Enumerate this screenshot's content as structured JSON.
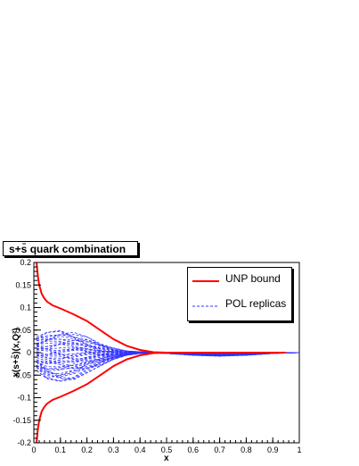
{
  "chart_data": {
    "type": "line",
    "title": "s+s̄ quark combination",
    "xlabel": "x",
    "ylabel": "x(s+s̄)(x,Q²)",
    "xlim": [
      0,
      1
    ],
    "ylim": [
      -0.2,
      0.2
    ],
    "x_ticks": [
      "0",
      "0.1",
      "0.2",
      "0.3",
      "0.4",
      "0.5",
      "0.6",
      "0.7",
      "0.8",
      "0.9",
      "1"
    ],
    "y_ticks": [
      "0.2",
      "0.15",
      "0.1",
      "0.05",
      "0",
      "-0.05",
      "-0.1",
      "-0.15",
      "-0.2"
    ],
    "legend_position": "top-right",
    "series": [
      {
        "name": "UNP bound",
        "color": "#ff0000",
        "style": "solid",
        "x": [
          0.01,
          0.015,
          0.02,
          0.03,
          0.04,
          0.05,
          0.07,
          0.1,
          0.15,
          0.2,
          0.25,
          0.3,
          0.35,
          0.4,
          0.45,
          0.5,
          0.6,
          0.7,
          0.8,
          0.9,
          0.95
        ],
        "upper": [
          0.2,
          0.17,
          0.15,
          0.13,
          0.12,
          0.113,
          0.105,
          0.098,
          0.085,
          0.07,
          0.05,
          0.03,
          0.015,
          0.006,
          0.001,
          0.0,
          0.0,
          0.0,
          0.0,
          0.0,
          0.0
        ],
        "lower": [
          -0.2,
          -0.17,
          -0.15,
          -0.13,
          -0.12,
          -0.113,
          -0.105,
          -0.098,
          -0.085,
          -0.07,
          -0.05,
          -0.03,
          -0.015,
          -0.006,
          -0.001,
          0.0,
          0.0,
          0.0,
          0.0,
          0.0,
          0.0
        ]
      },
      {
        "name": "POL replicas",
        "color": "#3333ff",
        "style": "dashed",
        "x": [
          0.01,
          0.05,
          0.1,
          0.15,
          0.2,
          0.25,
          0.3,
          0.35,
          0.4,
          0.45,
          0.5,
          0.55,
          0.6,
          0.65,
          0.7,
          0.75,
          0.8,
          0.85,
          0.9,
          0.95,
          1.0
        ],
        "envelope_upper": [
          0.035,
          0.045,
          0.05,
          0.045,
          0.035,
          0.02,
          0.01,
          0.004,
          0.002,
          0.001,
          0.0,
          0.0,
          0.0,
          0.0,
          0.0,
          0.0,
          0.0,
          0.0,
          0.0,
          0.0,
          0.0
        ],
        "envelope_lower": [
          -0.04,
          -0.06,
          -0.065,
          -0.06,
          -0.045,
          -0.03,
          -0.015,
          -0.006,
          -0.002,
          -0.001,
          -0.002,
          -0.004,
          -0.006,
          -0.007,
          -0.008,
          -0.007,
          -0.006,
          -0.004,
          -0.002,
          -0.001,
          0.0
        ]
      }
    ]
  }
}
